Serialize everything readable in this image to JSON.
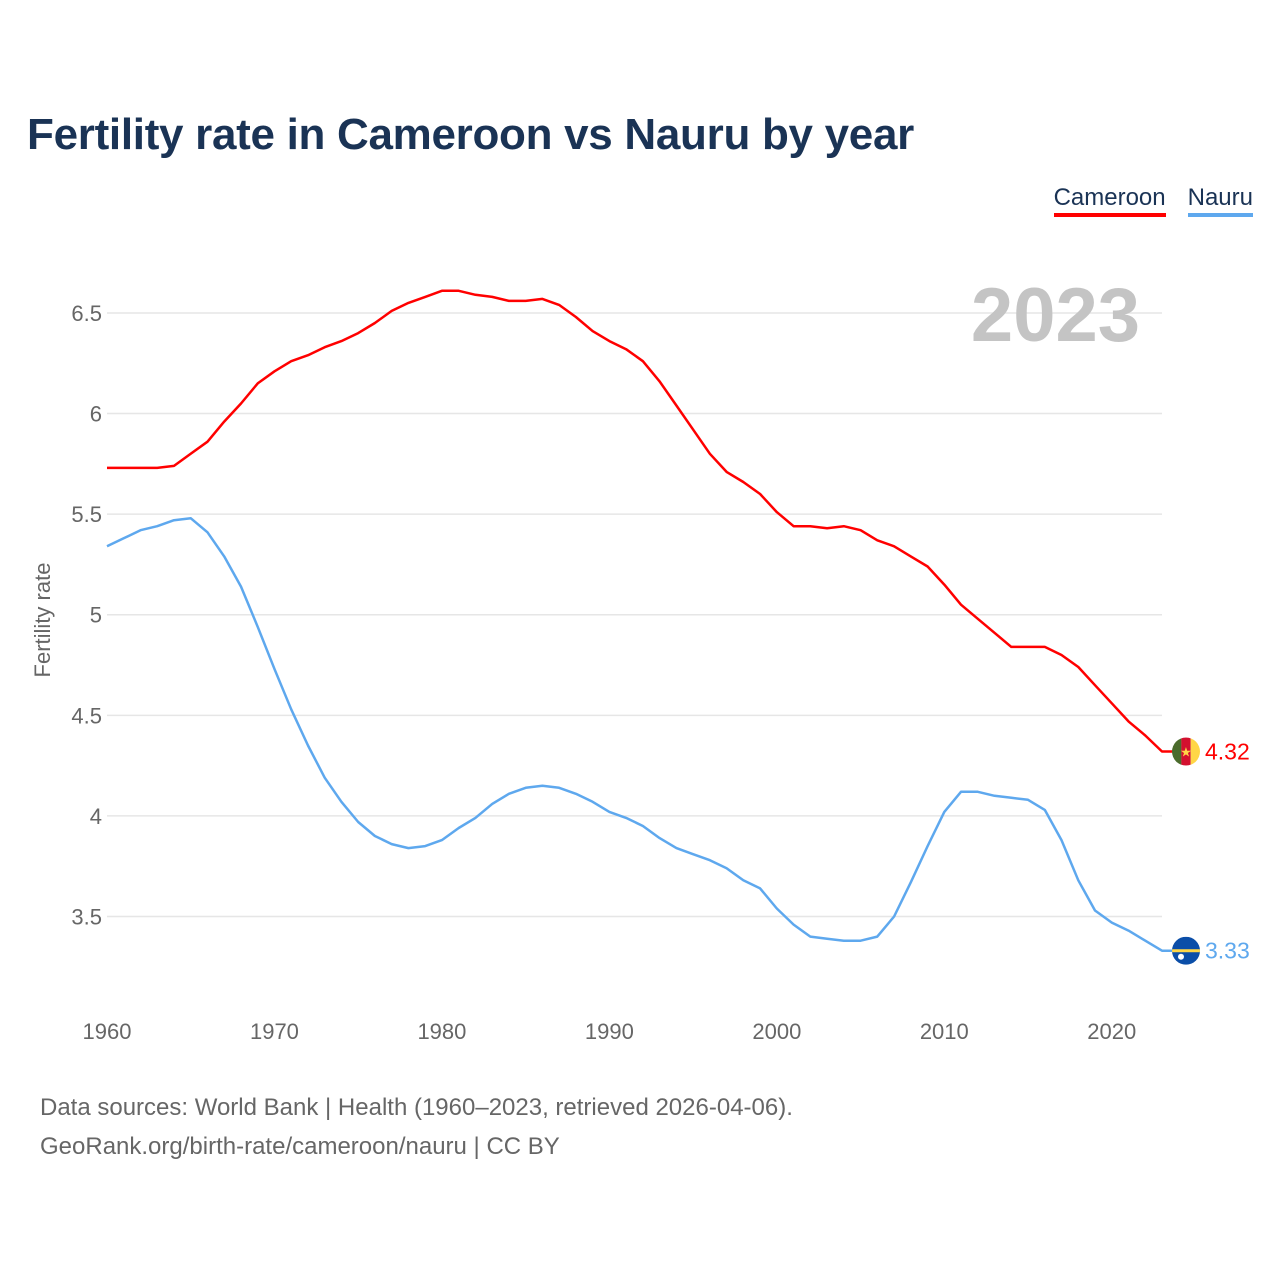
{
  "chart_data": {
    "type": "line",
    "title": "Fertility rate in Cameroon vs Nauru by year",
    "xlabel": "",
    "ylabel": "Fertility rate",
    "xlim": [
      1960,
      2023
    ],
    "ylim": [
      3.1,
      6.8
    ],
    "grid": true,
    "legend_position": "top-right",
    "year_watermark": "2023",
    "x_ticks": [
      1960,
      1970,
      1980,
      1990,
      2000,
      2010,
      2020
    ],
    "x_tick_labels": [
      "1960",
      "1970",
      "1980",
      "1990",
      "2000",
      "2010",
      "2020"
    ],
    "y_ticks": [
      3.5,
      4,
      4.5,
      5,
      5.5,
      6,
      6.5
    ],
    "y_tick_labels": [
      "3.5",
      "4",
      "4.5",
      "5",
      "5.5",
      "6",
      "6.5"
    ],
    "x_start": 1960,
    "series": [
      {
        "name": "Cameroon",
        "color": "#ff0000",
        "end_label": "4.32",
        "flag": "cameroon-flag",
        "values": [
          5.73,
          5.73,
          5.73,
          5.73,
          5.74,
          5.8,
          5.86,
          5.96,
          6.05,
          6.15,
          6.21,
          6.26,
          6.29,
          6.33,
          6.36,
          6.4,
          6.45,
          6.51,
          6.55,
          6.58,
          6.61,
          6.61,
          6.59,
          6.58,
          6.56,
          6.56,
          6.57,
          6.54,
          6.48,
          6.41,
          6.36,
          6.32,
          6.26,
          6.16,
          6.04,
          5.92,
          5.8,
          5.71,
          5.66,
          5.6,
          5.51,
          5.44,
          5.44,
          5.43,
          5.44,
          5.42,
          5.37,
          5.34,
          5.29,
          5.24,
          5.15,
          5.05,
          4.98,
          4.91,
          4.84,
          4.84,
          4.84,
          4.8,
          4.74,
          4.65,
          4.56,
          4.47,
          4.4,
          4.32
        ]
      },
      {
        "name": "Nauru",
        "color": "#5ea8ee",
        "end_label": "3.33",
        "flag": "nauru-flag",
        "values": [
          5.34,
          5.38,
          5.42,
          5.44,
          5.47,
          5.48,
          5.41,
          5.29,
          5.14,
          4.94,
          4.73,
          4.53,
          4.35,
          4.19,
          4.07,
          3.97,
          3.9,
          3.86,
          3.84,
          3.85,
          3.88,
          3.94,
          3.99,
          4.06,
          4.11,
          4.14,
          4.15,
          4.14,
          4.11,
          4.07,
          4.02,
          3.99,
          3.95,
          3.89,
          3.84,
          3.81,
          3.78,
          3.74,
          3.68,
          3.64,
          3.54,
          3.46,
          3.4,
          3.39,
          3.38,
          3.38,
          3.4,
          3.5,
          3.67,
          3.85,
          4.02,
          4.12,
          4.12,
          4.1,
          4.09,
          4.08,
          4.03,
          3.88,
          3.68,
          3.53,
          3.47,
          3.43,
          3.38,
          3.33
        ]
      }
    ]
  },
  "footer": {
    "line1": "Data sources: World Bank | Health (1960–2023, retrieved 2026-04-06).",
    "line2": "GeoRank.org/birth-rate/cameroon/nauru | CC BY"
  }
}
